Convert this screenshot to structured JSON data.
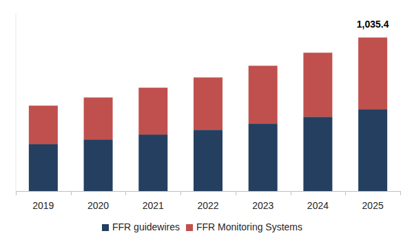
{
  "chart_data": {
    "type": "bar",
    "stacked": true,
    "categories": [
      "2019",
      "2020",
      "2021",
      "2022",
      "2023",
      "2024",
      "2025"
    ],
    "series": [
      {
        "name": "FFR guidewires",
        "color": "#243f60",
        "values": [
          316,
          348,
          381,
          413,
          455,
          501,
          552.5
        ]
      },
      {
        "name": "FFR Monitoring Systems",
        "color": "#c0504d",
        "values": [
          260,
          283,
          316,
          353,
          390,
          432,
          482.9
        ]
      }
    ],
    "annotations": [
      {
        "text": "1,035.4",
        "x": "2025",
        "y": 1035.4
      }
    ],
    "ylim": [
      0,
      1200
    ],
    "tick_labels": "x",
    "grid": false,
    "legend": "bottom"
  }
}
